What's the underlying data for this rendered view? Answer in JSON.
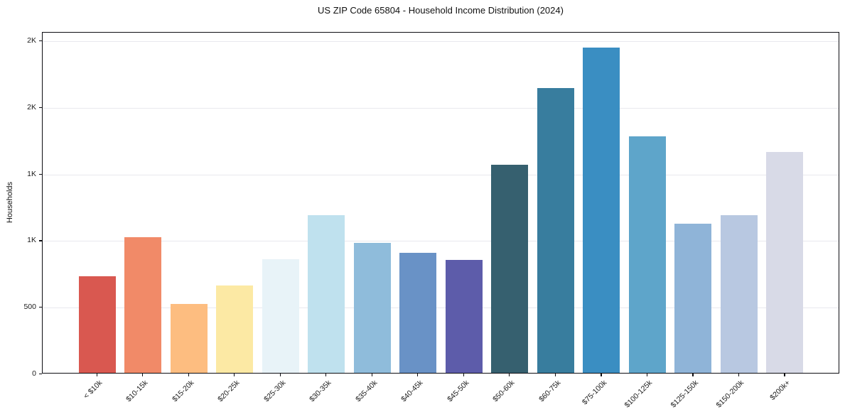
{
  "title": "US ZIP Code 65804 - Household Income Distribution (2024)",
  "chart_data": {
    "type": "bar",
    "title": "US ZIP Code 65804 - Household Income Distribution (2024)",
    "xlabel": "",
    "ylabel": "Households",
    "ylim": [
      0,
      2564
    ],
    "grid": "horizontal-only",
    "legend": "none",
    "categories": [
      "< $10k",
      "$10-15k",
      "$15-20k",
      "$20-25k",
      "$25-30k",
      "$30-35k",
      "$35-40k",
      "$40-45k",
      "$45-50k",
      "$50-60k",
      "$60-75k",
      "$75-100k",
      "$100-125k",
      "$125-150k",
      "$150-200k",
      "$200k+"
    ],
    "values": [
      725,
      1020,
      515,
      655,
      855,
      1185,
      975,
      900,
      850,
      1560,
      2140,
      2440,
      1775,
      1120,
      1185,
      1660
    ],
    "bar_colors": [
      "#d95850",
      "#f18a68",
      "#fdbd80",
      "#fce9a4",
      "#e8f3f8",
      "#bfe1ee",
      "#8fbcdb",
      "#6992c6",
      "#5d5caa",
      "#36606f",
      "#387d9e",
      "#3a8ec2",
      "#5ea5ca",
      "#8fb4d8",
      "#b8c8e1",
      "#d8dae7"
    ],
    "yticks": [
      {
        "value": 0,
        "label": "0"
      },
      {
        "value": 500,
        "label": "500"
      },
      {
        "value": 1000,
        "label": "1K"
      },
      {
        "value": 1500,
        "label": "1K"
      },
      {
        "value": 2000,
        "label": "2K"
      },
      {
        "value": 2500,
        "label": "2K"
      }
    ]
  },
  "colors": {
    "background": "#ffffff",
    "gridline": "#e9e9ee",
    "spine": "#0d0d12",
    "text": "#1c1c1c"
  }
}
